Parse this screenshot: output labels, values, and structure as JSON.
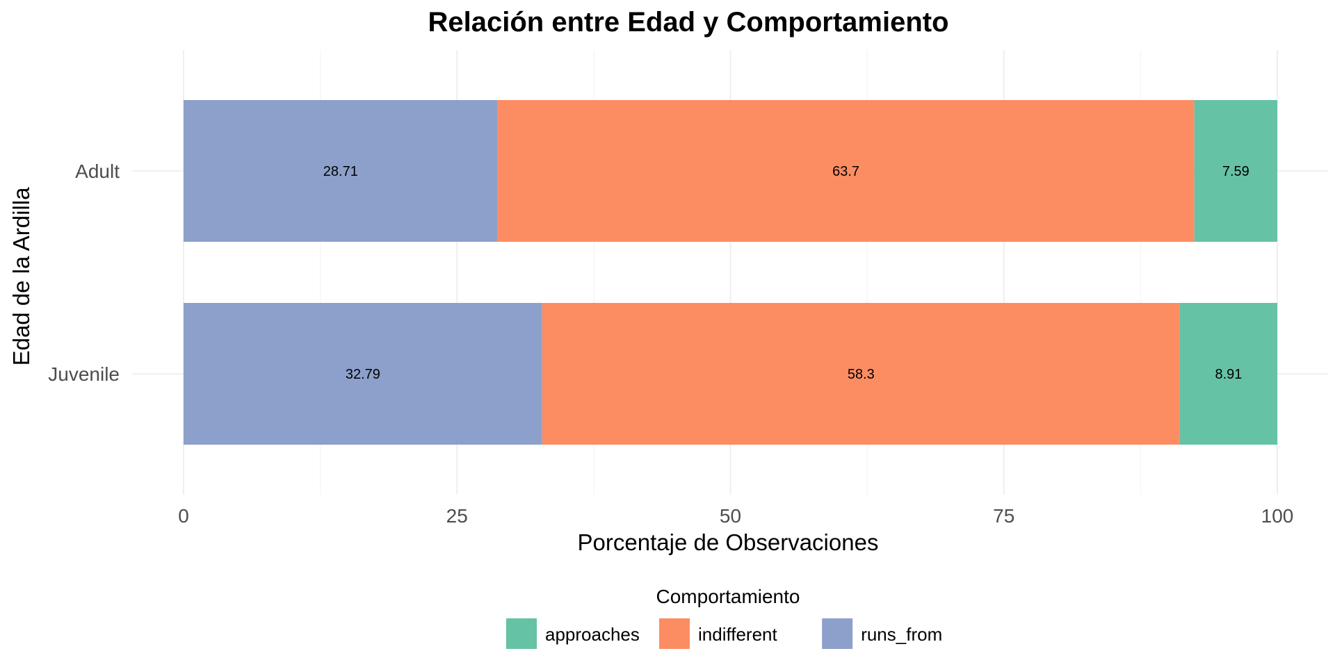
{
  "chart_data": {
    "type": "bar",
    "orientation": "horizontal",
    "stacked": true,
    "title": "Relación entre Edad y Comportamiento",
    "xlabel": "Porcentaje de Observaciones",
    "ylabel": "Edad de la Ardilla",
    "categories": [
      "Adult",
      "Juvenile"
    ],
    "xlim": [
      0,
      100
    ],
    "x_ticks": [
      0,
      25,
      50,
      75,
      100
    ],
    "grid": true,
    "legend_title": "Comportamiento",
    "legend_position": "bottom",
    "series": [
      {
        "name": "approaches",
        "color": "#66c2a5",
        "values": [
          7.59,
          8.91
        ]
      },
      {
        "name": "indifferent",
        "color": "#fc8d62",
        "values": [
          63.7,
          58.3
        ]
      },
      {
        "name": "runs_from",
        "color": "#8da0cb",
        "values": [
          28.71,
          32.79
        ]
      }
    ],
    "stack_order_left_to_right": [
      "runs_from",
      "indifferent",
      "approaches"
    ]
  }
}
